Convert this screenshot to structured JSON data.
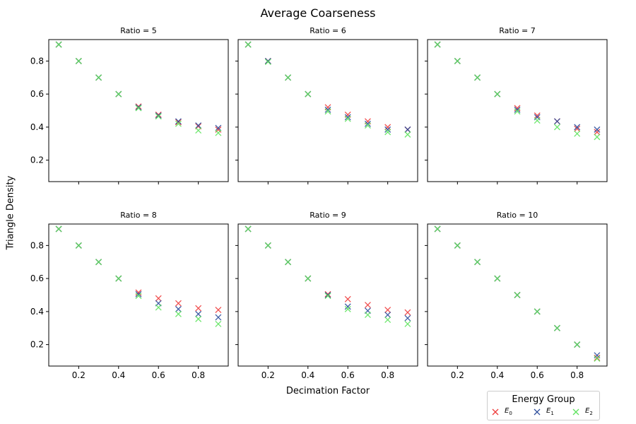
{
  "figure": {
    "title": "Average Coarseness",
    "xlabel": "Decimation Factor",
    "ylabel": "Triangle Density"
  },
  "legend": {
    "title": "Energy Group",
    "placement": "bottom-right",
    "entries": [
      {
        "base": "E",
        "sub": "0",
        "color": "#ee3b3b"
      },
      {
        "base": "E",
        "sub": "1",
        "color": "#2a4b9b"
      },
      {
        "base": "E",
        "sub": "2",
        "color": "#5ee35e"
      }
    ]
  },
  "chart_data": [
    {
      "type": "scatter",
      "title": "Ratio = 5",
      "xlim": [
        0.05,
        0.95
      ],
      "ylim": [
        0.07,
        0.93
      ],
      "xticks": [
        "0.2",
        "0.4",
        "0.6",
        "0.8"
      ],
      "yticks": [
        "0.2",
        "0.4",
        "0.6",
        "0.8"
      ],
      "x": [
        0.1,
        0.2,
        0.3,
        0.4,
        0.5,
        0.6,
        0.7,
        0.8,
        0.9
      ],
      "series": [
        {
          "color": "#ee3b3b",
          "values": [
            0.9,
            0.8,
            0.7,
            0.6,
            0.525,
            0.475,
            0.43,
            0.405,
            0.385
          ]
        },
        {
          "color": "#2a4b9b",
          "values": [
            0.9,
            0.8,
            0.7,
            0.6,
            0.52,
            0.47,
            0.435,
            0.41,
            0.395
          ]
        },
        {
          "color": "#5ee35e",
          "values": [
            0.9,
            0.8,
            0.7,
            0.6,
            0.515,
            0.465,
            0.42,
            0.38,
            0.365
          ]
        }
      ]
    },
    {
      "type": "scatter",
      "title": "Ratio = 6",
      "xlim": [
        0.05,
        0.95
      ],
      "ylim": [
        0.07,
        0.93
      ],
      "xticks": [
        "0.2",
        "0.4",
        "0.6",
        "0.8"
      ],
      "yticks": [
        "0.2",
        "0.4",
        "0.6",
        "0.8"
      ],
      "x": [
        0.1,
        0.2,
        0.3,
        0.4,
        0.5,
        0.6,
        0.7,
        0.8,
        0.9
      ],
      "series": [
        {
          "color": "#ee3b3b",
          "values": [
            0.9,
            0.8,
            0.7,
            0.6,
            0.52,
            0.475,
            0.435,
            0.4,
            0.385
          ]
        },
        {
          "color": "#2a4b9b",
          "values": [
            0.9,
            0.8,
            0.7,
            0.6,
            0.505,
            0.46,
            0.42,
            0.385,
            0.385
          ]
        },
        {
          "color": "#5ee35e",
          "values": [
            0.9,
            0.795,
            0.7,
            0.6,
            0.495,
            0.45,
            0.41,
            0.37,
            0.355
          ]
        }
      ]
    },
    {
      "type": "scatter",
      "title": "Ratio = 7",
      "xlim": [
        0.05,
        0.95
      ],
      "ylim": [
        0.07,
        0.93
      ],
      "xticks": [
        "0.2",
        "0.4",
        "0.6",
        "0.8"
      ],
      "yticks": [
        "0.2",
        "0.4",
        "0.6",
        "0.8"
      ],
      "x": [
        0.1,
        0.2,
        0.3,
        0.4,
        0.5,
        0.6,
        0.7,
        0.8,
        0.9
      ],
      "series": [
        {
          "color": "#ee3b3b",
          "values": [
            0.9,
            0.8,
            0.7,
            0.6,
            0.515,
            0.47,
            0.435,
            0.39,
            0.37
          ]
        },
        {
          "color": "#2a4b9b",
          "values": [
            0.9,
            0.8,
            0.7,
            0.6,
            0.505,
            0.46,
            0.435,
            0.4,
            0.385
          ]
        },
        {
          "color": "#5ee35e",
          "values": [
            0.9,
            0.8,
            0.7,
            0.6,
            0.495,
            0.44,
            0.4,
            0.36,
            0.34
          ]
        }
      ]
    },
    {
      "type": "scatter",
      "title": "Ratio = 8",
      "xlim": [
        0.05,
        0.95
      ],
      "ylim": [
        0.07,
        0.93
      ],
      "xticks": [
        "0.2",
        "0.4",
        "0.6",
        "0.8"
      ],
      "yticks": [
        "0.2",
        "0.4",
        "0.6",
        "0.8"
      ],
      "x": [
        0.1,
        0.2,
        0.3,
        0.4,
        0.5,
        0.6,
        0.7,
        0.8,
        0.9
      ],
      "series": [
        {
          "color": "#ee3b3b",
          "values": [
            0.9,
            0.8,
            0.7,
            0.6,
            0.515,
            0.48,
            0.45,
            0.42,
            0.41
          ]
        },
        {
          "color": "#2a4b9b",
          "values": [
            0.9,
            0.8,
            0.7,
            0.6,
            0.505,
            0.45,
            0.415,
            0.385,
            0.365
          ]
        },
        {
          "color": "#5ee35e",
          "values": [
            0.9,
            0.8,
            0.7,
            0.6,
            0.495,
            0.425,
            0.385,
            0.355,
            0.325
          ]
        }
      ]
    },
    {
      "type": "scatter",
      "title": "Ratio = 9",
      "xlim": [
        0.05,
        0.95
      ],
      "ylim": [
        0.07,
        0.93
      ],
      "xticks": [
        "0.2",
        "0.4",
        "0.6",
        "0.8"
      ],
      "yticks": [
        "0.2",
        "0.4",
        "0.6",
        "0.8"
      ],
      "x": [
        0.1,
        0.2,
        0.3,
        0.4,
        0.5,
        0.6,
        0.7,
        0.8,
        0.9
      ],
      "series": [
        {
          "color": "#ee3b3b",
          "values": [
            0.9,
            0.8,
            0.7,
            0.6,
            0.505,
            0.475,
            0.44,
            0.41,
            0.395
          ]
        },
        {
          "color": "#2a4b9b",
          "values": [
            0.9,
            0.8,
            0.7,
            0.6,
            0.5,
            0.43,
            0.405,
            0.38,
            0.36
          ]
        },
        {
          "color": "#5ee35e",
          "values": [
            0.9,
            0.8,
            0.7,
            0.6,
            0.495,
            0.415,
            0.38,
            0.35,
            0.325
          ]
        }
      ]
    },
    {
      "type": "scatter",
      "title": "Ratio = 10",
      "xlim": [
        0.05,
        0.95
      ],
      "ylim": [
        0.07,
        0.93
      ],
      "xticks": [
        "0.2",
        "0.4",
        "0.6",
        "0.8"
      ],
      "yticks": [
        "0.2",
        "0.4",
        "0.6",
        "0.8"
      ],
      "x": [
        0.1,
        0.2,
        0.3,
        0.4,
        0.5,
        0.6,
        0.7,
        0.8,
        0.9
      ],
      "series": [
        {
          "color": "#ee3b3b",
          "values": [
            0.9,
            0.8,
            0.7,
            0.6,
            0.5,
            0.4,
            0.3,
            0.2,
            0.12
          ]
        },
        {
          "color": "#2a4b9b",
          "values": [
            0.9,
            0.8,
            0.7,
            0.6,
            0.5,
            0.4,
            0.3,
            0.2,
            0.135
          ]
        },
        {
          "color": "#5ee35e",
          "values": [
            0.9,
            0.8,
            0.7,
            0.6,
            0.5,
            0.4,
            0.3,
            0.2,
            0.115
          ]
        }
      ]
    }
  ]
}
